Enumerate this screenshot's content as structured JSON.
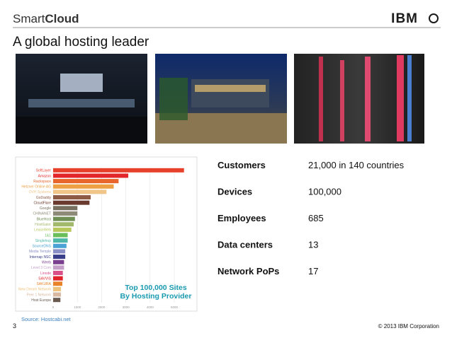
{
  "header": {
    "brand": [
      "Smart",
      "Cloud"
    ],
    "logo": "IBM"
  },
  "title": "A global hosting leader",
  "stats": [
    {
      "label": "Customers",
      "value": "21,000 in 140 countries"
    },
    {
      "label": "Devices",
      "value": "100,000"
    },
    {
      "label": "Employees",
      "value": "685"
    },
    {
      "label": "Data centers",
      "value": "13"
    },
    {
      "label": "Network PoPs",
      "value": "17"
    }
  ],
  "chart_data": {
    "type": "bar",
    "orientation": "horizontal",
    "title": [
      "Top 100,000 Sites",
      "By Hosting Provider"
    ],
    "categories": [
      "SoftLayer",
      "Amazon",
      "Rackspace",
      "Hetzner Online AG",
      "OVH Systems",
      "GoDaddy",
      "CloudFlare",
      "Google",
      "CHINANET",
      "BlueHost",
      "HostGator",
      "LeaseWeb",
      "1&1",
      "Singlehop",
      "SourceDNS",
      "Media Temple",
      "Internap NSC",
      "Weeb",
      "Level 3 Com",
      "Linode",
      "SAVVIS",
      "SAKURA",
      "New Dream Network",
      "Peer 1 Network",
      "Host Europe"
    ],
    "values": [
      5400,
      3100,
      2700,
      2500,
      2200,
      1550,
      1500,
      1000,
      1000,
      900,
      850,
      750,
      600,
      600,
      550,
      500,
      500,
      450,
      450,
      400,
      400,
      380,
      320,
      320,
      300
    ],
    "colors": [
      "#e8412b",
      "#e3262a",
      "#e8652c",
      "#eda043",
      "#f0c58a",
      "#8c5a45",
      "#6b3a2e",
      "#77705e",
      "#8d8b78",
      "#6f8f54",
      "#a2b86a",
      "#b8c75a",
      "#6bbf5a",
      "#4fb7a8",
      "#4aa3d4",
      "#8a8fc6",
      "#3a3f8a",
      "#7a3f8f",
      "#c4a0c8",
      "#d94f8a",
      "#e0222b",
      "#e8832a",
      "#eec27a",
      "#d8b8a0",
      "#6a5a50"
    ],
    "xlim": [
      0,
      5700
    ],
    "xticks": [
      0,
      1000,
      2000,
      3000,
      4000,
      5000
    ],
    "grid": true
  },
  "source": "Source: Hostcabi.net",
  "footer": {
    "page": "3",
    "copyright": "© 2013 IBM Corporation"
  }
}
